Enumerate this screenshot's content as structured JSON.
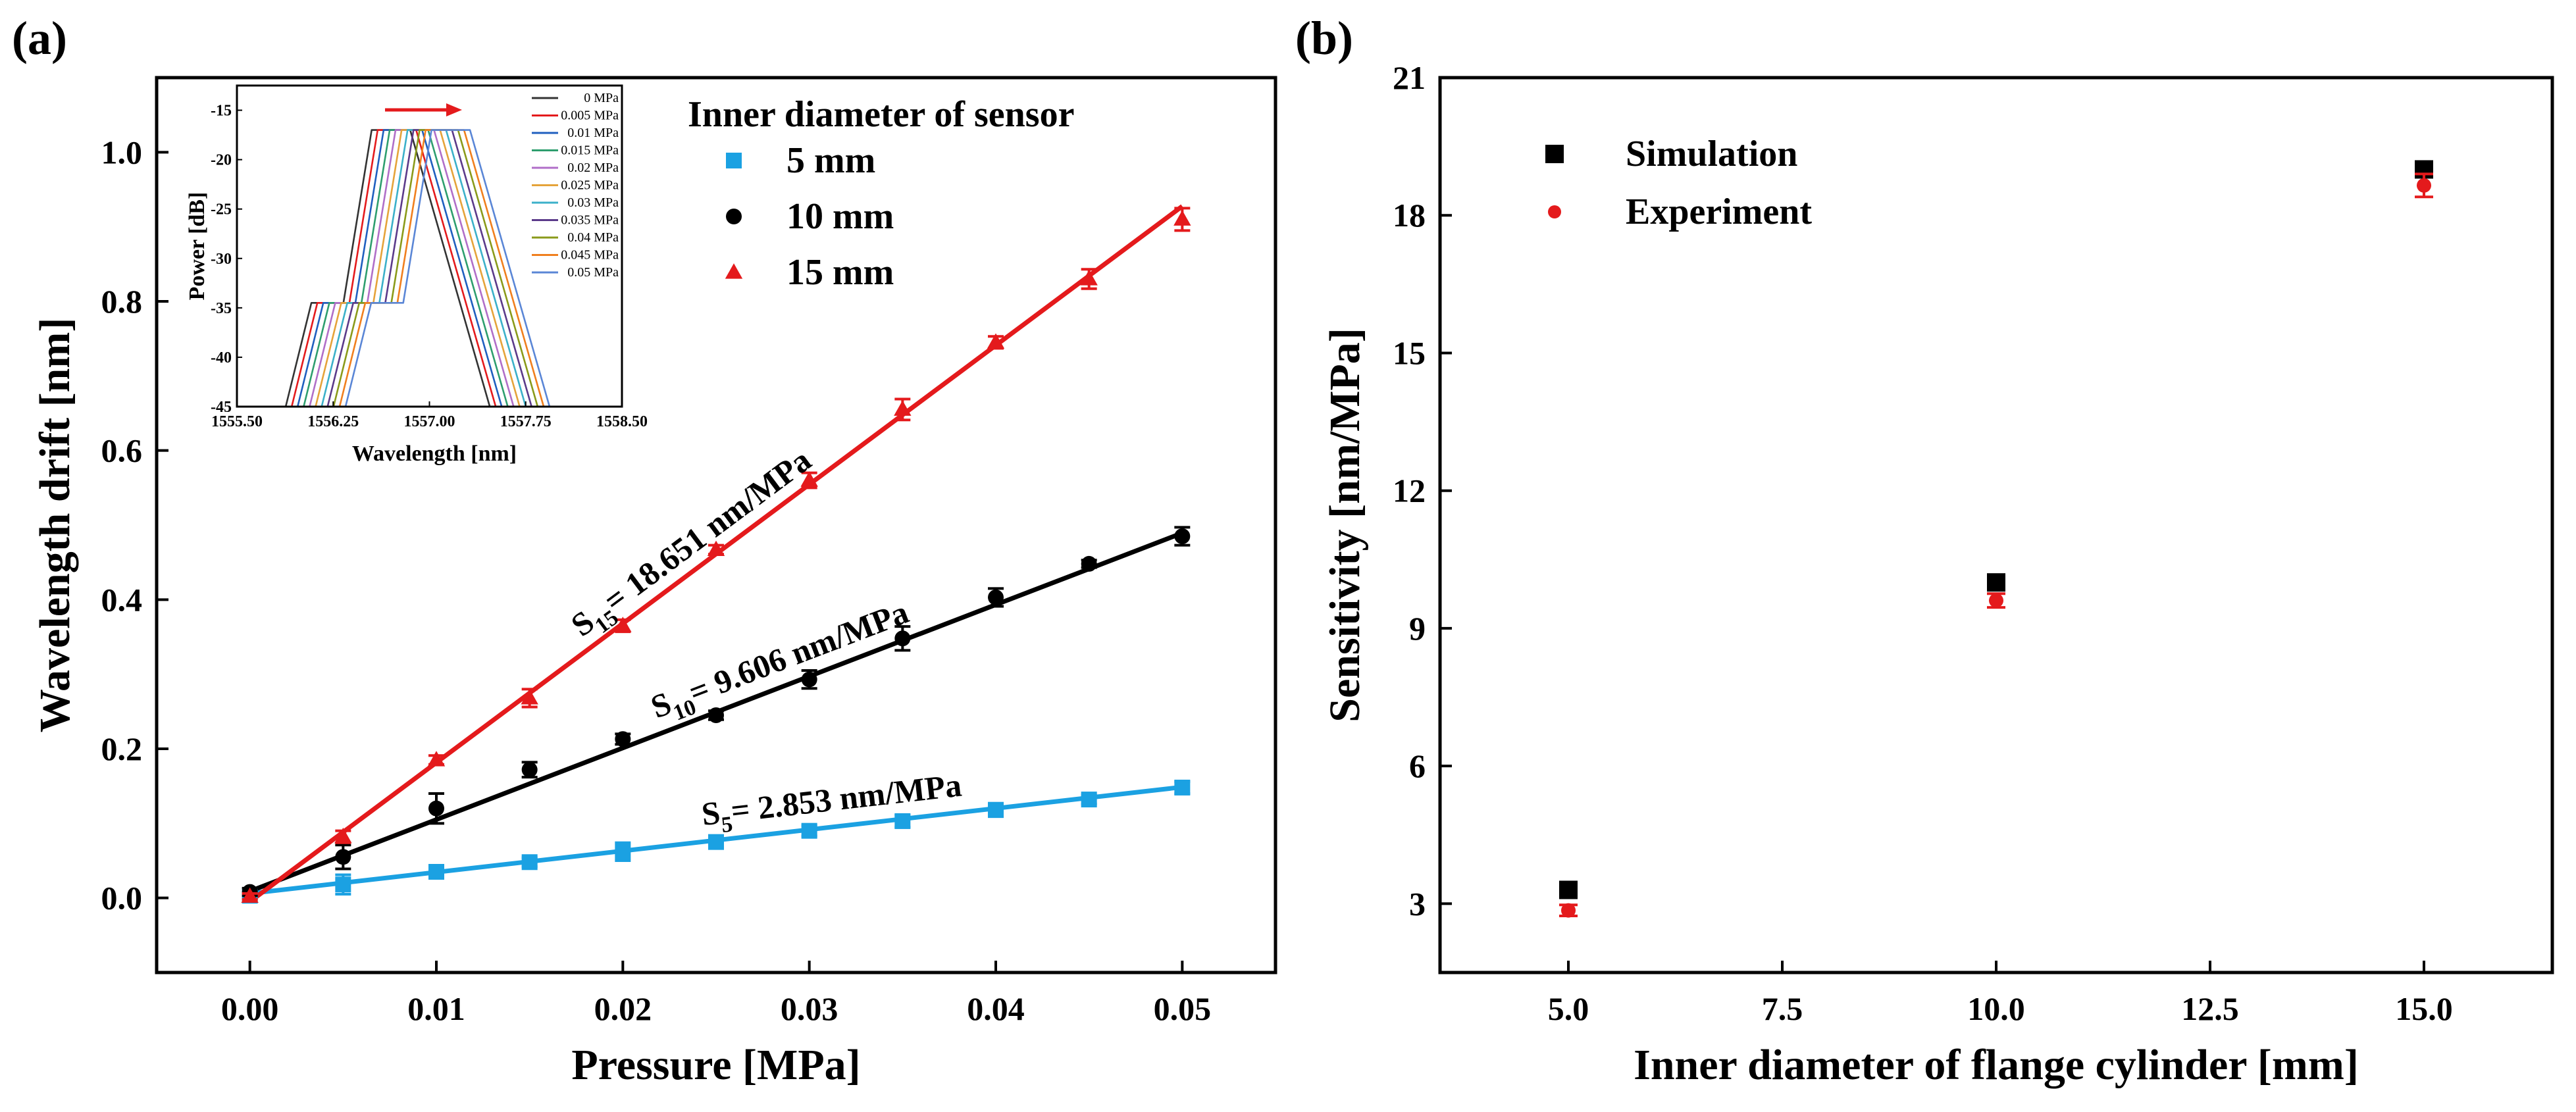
{
  "panel_a_label": "(a)",
  "panel_b_label": "(b)",
  "chart_data": [
    {
      "id": "a",
      "type": "scatter",
      "xlabel": "Pressure [MPa]",
      "ylabel": "Wavelength drift [nm]",
      "xlim": [
        -0.005,
        0.055
      ],
      "ylim": [
        -0.1,
        1.1
      ],
      "xticks": [
        0.0,
        0.01,
        0.02,
        0.03,
        0.04,
        0.05
      ],
      "xtick_labels": [
        "0.00",
        "0.01",
        "0.02",
        "0.03",
        "0.04",
        "0.05"
      ],
      "yticks": [
        0.0,
        0.2,
        0.4,
        0.6,
        0.8,
        1.0
      ],
      "ytick_labels": [
        "0.0",
        "0.2",
        "0.4",
        "0.6",
        "0.8",
        "1.0"
      ],
      "legend_title": "Inner diameter of sensor",
      "legend_position": "top-right",
      "x": [
        0.0,
        0.005,
        0.01,
        0.015,
        0.02,
        0.025,
        0.03,
        0.035,
        0.04,
        0.045,
        0.05
      ],
      "series": [
        {
          "name": "5  mm",
          "color": "#1ba1e2",
          "marker": "square",
          "values": [
            0.003,
            0.018,
            0.035,
            0.048,
            0.062,
            0.075,
            0.09,
            0.103,
            0.118,
            0.132,
            0.148
          ],
          "errors": [
            0.004,
            0.013,
            0.008,
            0.006,
            0.012,
            0.008,
            0.007,
            0.008,
            0.009,
            0.006,
            0.008
          ],
          "fit": {
            "label_main": "S",
            "label_sub": "5",
            "label_rest": "= 2.853 nm/MPa",
            "intercept": 0.006,
            "slope": 2.853
          }
        },
        {
          "name": "10 mm",
          "color": "#000000",
          "marker": "circle",
          "values": [
            0.008,
            0.055,
            0.12,
            0.172,
            0.213,
            0.245,
            0.293,
            0.348,
            0.403,
            0.448,
            0.485
          ],
          "errors": [
            0.005,
            0.016,
            0.02,
            0.01,
            0.007,
            0.006,
            0.012,
            0.016,
            0.012,
            0.005,
            0.012
          ],
          "fit": {
            "label_main": "S",
            "label_sub": "10",
            "label_rest": "= 9.606 nm/MPa",
            "intercept": 0.009,
            "slope": 9.606
          }
        },
        {
          "name": "15 mm",
          "color": "#e41a1c",
          "marker": "triangle",
          "values": [
            0.002,
            0.082,
            0.185,
            0.268,
            0.365,
            0.467,
            0.56,
            0.655,
            0.745,
            0.83,
            0.91
          ],
          "errors": [
            0.004,
            0.008,
            0.006,
            0.012,
            0.008,
            0.006,
            0.01,
            0.014,
            0.008,
            0.013,
            0.015
          ],
          "fit": {
            "label_main": "S",
            "label_sub": "15",
            "label_rest": "= 18.651 nm/MPa",
            "intercept": -0.005,
            "slope": 18.651
          }
        }
      ]
    },
    {
      "id": "a-inset",
      "type": "line",
      "xlabel": "Wavelength [nm]",
      "ylabel": "Power [dB]",
      "xlim": [
        1555.5,
        1558.5
      ],
      "ylim": [
        -45,
        -12.5
      ],
      "xticks": [
        1555.5,
        1556.25,
        1557.0,
        1557.75,
        1558.5
      ],
      "xtick_labels": [
        "1555.50",
        "1556.25",
        "1557.00",
        "1557.75",
        "1558.50"
      ],
      "yticks": [
        -45,
        -40,
        -35,
        -30,
        -25,
        -20,
        -15
      ],
      "ytick_labels": [
        "-45",
        "-40",
        "-35",
        "-30",
        "-25",
        "-20",
        "-15"
      ],
      "spectrum_shape": {
        "rise_start": 1555.88,
        "step_start": 1556.08,
        "step_end": 1556.33,
        "peak_start": 1556.55,
        "peak_end": 1556.85,
        "fall_end": 1557.47,
        "peak_db": -17.0,
        "step_db": -34.5,
        "floor_db": -45.0
      },
      "curves": [
        {
          "label": "0     MPa",
          "color": "#333333",
          "shift_nm": 0.0
        },
        {
          "label": "0.005 MPa",
          "color": "#e41a1c",
          "shift_nm": 0.0465
        },
        {
          "label": "0.01  MPa",
          "color": "#1f5fbf",
          "shift_nm": 0.093
        },
        {
          "label": "0.015 MPa",
          "color": "#2e9e6e",
          "shift_nm": 0.14
        },
        {
          "label": "0.02  MPa",
          "color": "#b06ec8",
          "shift_nm": 0.186
        },
        {
          "label": "0.025 MPa",
          "color": "#e5a33a",
          "shift_nm": 0.233
        },
        {
          "label": "0.03  MPa",
          "color": "#3bb0c9",
          "shift_nm": 0.28
        },
        {
          "label": "0.035 MPa",
          "color": "#5b3a8a",
          "shift_nm": 0.326
        },
        {
          "label": "0.04  MPa",
          "color": "#8a9a1a",
          "shift_nm": 0.373
        },
        {
          "label": "0.045 MPa",
          "color": "#f07f1e",
          "shift_nm": 0.42
        },
        {
          "label": "0.05  MPa",
          "color": "#5a86d6",
          "shift_nm": 0.466
        }
      ]
    },
    {
      "id": "b",
      "type": "scatter",
      "xlabel": "Inner diameter of flange cylinder [mm]",
      "ylabel": "Sensitivity [nm/MPa]",
      "xlim": [
        3.5,
        16.5
      ],
      "ylim": [
        1.5,
        21
      ],
      "xticks": [
        5.0,
        7.5,
        10.0,
        12.5,
        15.0
      ],
      "xtick_labels": [
        "5.0",
        "7.5",
        "10.0",
        "12.5",
        "15.0"
      ],
      "yticks": [
        3,
        6,
        9,
        12,
        15,
        18,
        21
      ],
      "ytick_labels": [
        "3",
        "6",
        "9",
        "12",
        "15",
        "18",
        "21"
      ],
      "legend_position": "top-left",
      "x": [
        5.0,
        10.0,
        15.0
      ],
      "series": [
        {
          "name": "Simulation",
          "color": "#000000",
          "marker": "square",
          "values": [
            3.3,
            10.0,
            19.0
          ],
          "errors": [
            0,
            0,
            0
          ]
        },
        {
          "name": "Experiment",
          "color": "#e41a1c",
          "marker": "circle",
          "values": [
            2.853,
            9.606,
            18.651
          ],
          "errors": [
            0.12,
            0.15,
            0.25
          ]
        }
      ]
    }
  ]
}
